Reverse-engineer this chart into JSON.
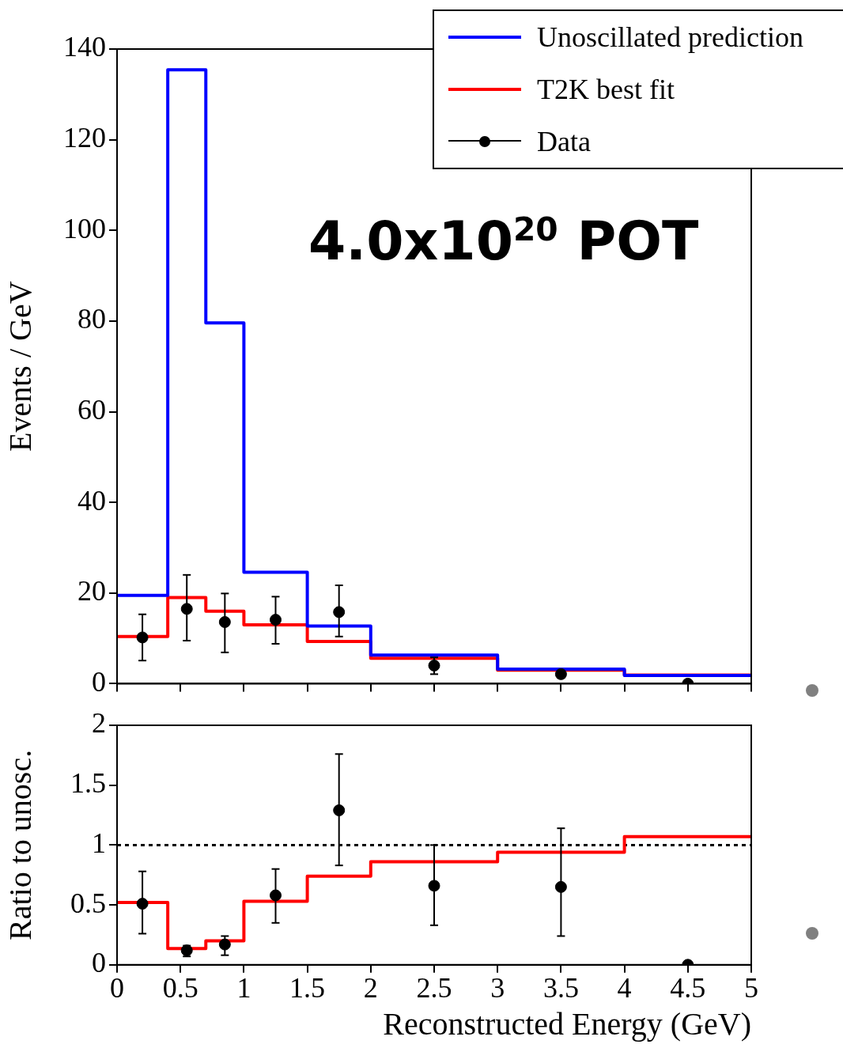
{
  "chart_data": [
    {
      "type": "step",
      "ylabel": "Events / GeV",
      "series": [
        {
          "name": "Unoscillated prediction",
          "color": "#0000ff",
          "marker": "none",
          "x": [
            0,
            0.4,
            0.7,
            1,
            1.5,
            2,
            3,
            4,
            5
          ],
          "values": [
            19.5,
            135.4,
            79.6,
            24.6,
            12.7,
            6.3,
            3.2,
            1.8,
            1.8
          ]
        },
        {
          "name": "T2K best fit",
          "color": "#ff0000",
          "marker": "none",
          "x": [
            0,
            0.4,
            0.7,
            1,
            1.5,
            2,
            3,
            4,
            5
          ],
          "values": [
            10.4,
            19.0,
            16.0,
            13.0,
            9.3,
            5.6,
            3.0,
            1.9,
            1.9
          ]
        },
        {
          "name": "Data",
          "type": "scatter",
          "color": "#000000",
          "x": [
            0.2,
            0.55,
            0.85,
            1.25,
            1.75,
            2.5,
            3.5,
            4.5
          ],
          "values": [
            10.2,
            16.5,
            13.6,
            14.1,
            15.8,
            4.0,
            2.1,
            0.0
          ],
          "errors": [
            [
              5.1,
              15.3
            ],
            [
              9.5,
              24.0
            ],
            [
              6.9,
              19.9
            ],
            [
              8.8,
              19.2
            ],
            [
              10.4,
              21.7
            ],
            [
              2.1,
              5.8
            ],
            [
              1.3,
              2.9
            ],
            null
          ]
        }
      ],
      "xlim": [
        0,
        5
      ],
      "xticks": [
        0,
        0.5,
        1,
        1.5,
        2,
        2.5,
        3,
        3.5,
        4,
        4.5,
        5
      ],
      "ylim": [
        0,
        140
      ],
      "yticks": [
        0,
        20,
        40,
        60,
        80,
        100,
        120,
        140
      ],
      "tick_labels": "y",
      "legend": "top right",
      "marker": "circle",
      "annotations": [
        "4.0x10$^{20}$ POT"
      ]
    },
    {
      "type": "step",
      "ylabel": "Ratio to unosc.",
      "xlabel": "Reconstructed Energy (GeV)",
      "series": [
        {
          "color": "#ff0000",
          "marker": "none",
          "x": [
            0,
            0.4,
            0.7,
            1,
            1.5,
            2,
            3,
            4,
            5
          ],
          "values": [
            0.52,
            0.135,
            0.2,
            0.53,
            0.74,
            0.86,
            0.94,
            1.07,
            1.07
          ]
        },
        {
          "type": "scatter",
          "color": "#000000",
          "x": [
            0.2,
            0.55,
            0.85,
            1.25,
            1.75,
            2.5,
            3.5,
            4.5
          ],
          "values": [
            0.51,
            0.12,
            0.17,
            0.58,
            1.29,
            0.66,
            0.65,
            0.0
          ],
          "errors": [
            [
              0.26,
              0.78
            ],
            [
              0.07,
              0.16
            ],
            [
              0.08,
              0.24
            ],
            [
              0.35,
              0.8
            ],
            [
              0.83,
              1.76
            ],
            [
              0.33,
              1.0
            ],
            [
              0.24,
              1.14
            ],
            null
          ]
        }
      ],
      "xlim": [
        0,
        5
      ],
      "xticks": [
        0,
        0.5,
        1,
        1.5,
        2,
        2.5,
        3,
        3.5,
        4,
        4.5,
        5
      ],
      "ylim": [
        0,
        2
      ],
      "yticks": [
        0,
        0.5,
        1,
        1.5,
        2
      ],
      "marker": "circle",
      "ref_lines": [
        {
          "axis": "y",
          "value": 1,
          "color": "#000000",
          "line_style": "dotted"
        }
      ]
    }
  ]
}
